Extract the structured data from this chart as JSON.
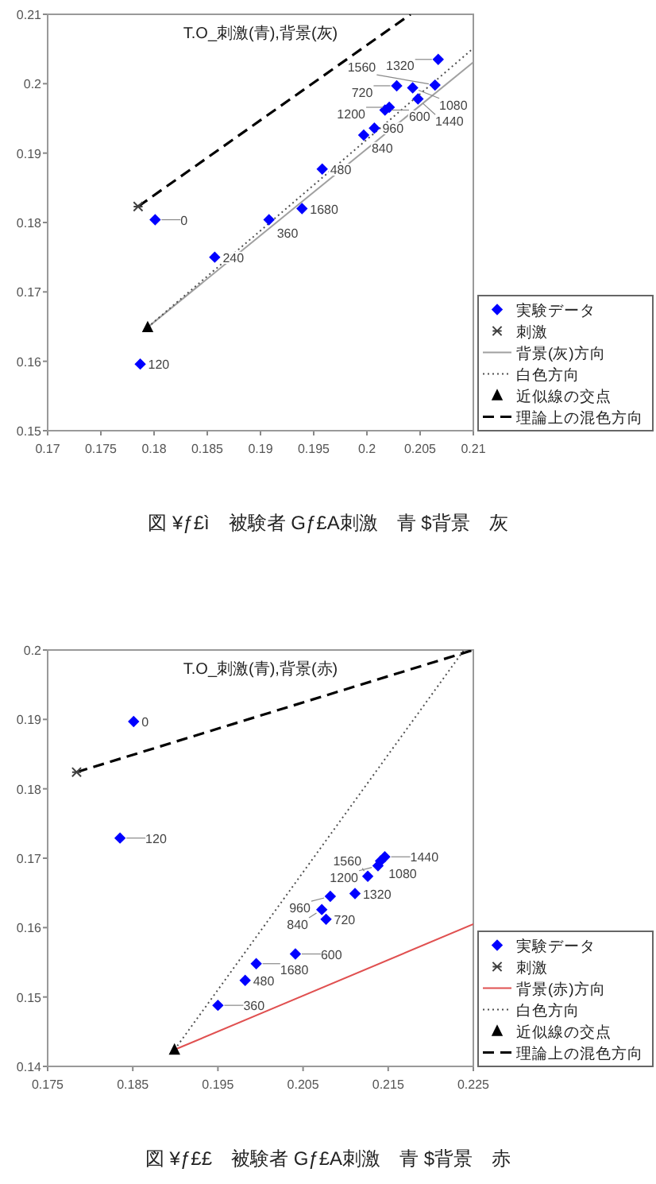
{
  "chart_data": [
    {
      "type": "scatter",
      "title": "T.O_刺激(青),背景(灰)",
      "xlim": [
        0.17,
        0.21
      ],
      "ylim": [
        0.15,
        0.21
      ],
      "xticks": [
        0.17,
        0.175,
        0.18,
        0.185,
        0.19,
        0.195,
        0.2,
        0.205,
        0.21
      ],
      "yticks": [
        0.15,
        0.16,
        0.17,
        0.18,
        0.19,
        0.2,
        0.21
      ],
      "legend": "bottom right",
      "series": [
        {
          "name": "実験データ",
          "type": "scatter",
          "marker": "diamond",
          "color": "#0000ff",
          "x": [
            0.1801,
            0.1787,
            0.1857,
            0.1908,
            0.1958,
            0.2017,
            0.2028,
            0.1997,
            0.2007,
            0.2043,
            0.2021,
            0.2067,
            0.2048,
            0.2064,
            0.1939
          ],
          "values": [
            0.1804,
            0.1596,
            0.175,
            0.1804,
            0.1877,
            0.1962,
            0.1997,
            0.1926,
            0.1936,
            0.1994,
            0.1966,
            0.2035,
            0.1978,
            0.1998,
            0.182
          ]
        },
        {
          "name": "刺激",
          "type": "scatter",
          "marker": "cross",
          "color": "#404040",
          "x": [
            0.1785
          ],
          "values": [
            0.1823
          ]
        },
        {
          "name": "背景(灰)方向",
          "type": "line",
          "line_style": "solid",
          "color": "#a0a0a0",
          "x": [
            0.1794,
            0.21
          ],
          "values": [
            0.1649,
            0.2031
          ]
        },
        {
          "name": "白色方向",
          "type": "line",
          "line_style": "dotted",
          "color": "#505050",
          "x": [
            0.1794,
            0.21
          ],
          "values": [
            0.1649,
            0.2051
          ]
        },
        {
          "name": "近似線の交点",
          "type": "scatter",
          "marker": "triangle",
          "color": "#000000",
          "x": [
            0.1794
          ],
          "values": [
            0.1649
          ]
        },
        {
          "name": "理論上の混色方向",
          "type": "line",
          "line_style": "dashed",
          "color": "#000000",
          "x": [
            0.1785,
            0.2041
          ],
          "values": [
            0.1823,
            0.21
          ]
        }
      ],
      "annotations": [
        {
          "text": "0",
          "x": 0.1801,
          "y": 0.1804
        },
        {
          "text": "120",
          "x": 0.1787,
          "y": 0.1596
        },
        {
          "text": "240",
          "x": 0.1857,
          "y": 0.175
        },
        {
          "text": "360",
          "x": 0.1908,
          "y": 0.1804
        },
        {
          "text": "480",
          "x": 0.1958,
          "y": 0.1877
        },
        {
          "text": "600",
          "x": 0.2017,
          "y": 0.1962
        },
        {
          "text": "720",
          "x": 0.2028,
          "y": 0.1997
        },
        {
          "text": "840",
          "x": 0.1997,
          "y": 0.1926
        },
        {
          "text": "960",
          "x": 0.2007,
          "y": 0.1936
        },
        {
          "text": "1080",
          "x": 0.2043,
          "y": 0.1994
        },
        {
          "text": "1200",
          "x": 0.2021,
          "y": 0.1966
        },
        {
          "text": "1320",
          "x": 0.2067,
          "y": 0.2035
        },
        {
          "text": "1440",
          "x": 0.2048,
          "y": 0.1978
        },
        {
          "text": "1560",
          "x": 0.2064,
          "y": 0.1998
        },
        {
          "text": "1680",
          "x": 0.1939,
          "y": 0.182
        },
        "図 ¥ƒ£ì　被験者 Gƒ£A刺激　青 $背景　灰"
      ]
    },
    {
      "type": "scatter",
      "title": "T.O_刺激(青),背景(赤)",
      "xlim": [
        0.175,
        0.225
      ],
      "ylim": [
        0.14,
        0.2
      ],
      "xticks": [
        0.175,
        0.185,
        0.195,
        0.205,
        0.215,
        0.225
      ],
      "yticks": [
        0.14,
        0.15,
        0.16,
        0.17,
        0.18,
        0.19,
        0.2
      ],
      "legend": "bottom right",
      "series": [
        {
          "name": "実験データ",
          "type": "scatter",
          "marker": "diamond",
          "color": "#0000ff",
          "x": [
            0.1851,
            0.1835,
            0.195,
            0.1982,
            0.2041,
            0.2077,
            0.2072,
            0.2082,
            0.2141,
            0.2138,
            0.2111,
            0.2146,
            0.2126,
            0.1995
          ],
          "values": [
            0.1897,
            0.1729,
            0.1488,
            0.1524,
            0.1562,
            0.1612,
            0.1626,
            0.1645,
            0.1696,
            0.1689,
            0.1649,
            0.1702,
            0.1674,
            0.1548
          ]
        },
        {
          "name": "刺激",
          "type": "scatter",
          "marker": "cross",
          "color": "#404040",
          "x": [
            0.1784
          ],
          "values": [
            0.1824
          ]
        },
        {
          "name": "背景(赤)方向",
          "type": "line",
          "line_style": "solid",
          "color": "#e05050",
          "x": [
            0.1899,
            0.225
          ],
          "values": [
            0.1424,
            0.1605
          ]
        },
        {
          "name": "白色方向",
          "type": "line",
          "line_style": "dotted",
          "color": "#505050",
          "x": [
            0.1899,
            0.2239
          ],
          "values": [
            0.1424,
            0.2
          ]
        },
        {
          "name": "近似線の交点",
          "type": "scatter",
          "marker": "triangle",
          "color": "#000000",
          "x": [
            0.1899
          ],
          "values": [
            0.1424
          ]
        },
        {
          "name": "理論上の混色方向",
          "type": "line",
          "line_style": "dashed",
          "color": "#000000",
          "x": [
            0.1784,
            0.225
          ],
          "values": [
            0.1824,
            0.2
          ]
        }
      ],
      "annotations": [
        {
          "text": "0",
          "x": 0.1851,
          "y": 0.1897
        },
        {
          "text": "120",
          "x": 0.1835,
          "y": 0.1729
        },
        {
          "text": "360",
          "x": 0.195,
          "y": 0.1488
        },
        {
          "text": "480",
          "x": 0.1982,
          "y": 0.1524
        },
        {
          "text": "600",
          "x": 0.2041,
          "y": 0.1562
        },
        {
          "text": "720",
          "x": 0.2077,
          "y": 0.1612
        },
        {
          "text": "840",
          "x": 0.2072,
          "y": 0.1626
        },
        {
          "text": "960",
          "x": 0.2082,
          "y": 0.1645
        },
        {
          "text": "1080",
          "x": 0.2141,
          "y": 0.1696
        },
        {
          "text": "1200",
          "x": 0.2138,
          "y": 0.1689
        },
        {
          "text": "1320",
          "x": 0.2111,
          "y": 0.1649
        },
        {
          "text": "1440",
          "x": 0.2146,
          "y": 0.1702
        },
        {
          "text": "1560",
          "x": 0.2126,
          "y": 0.1674
        },
        {
          "text": "1680",
          "x": 0.1995,
          "y": 0.1548
        },
        "図 ¥ƒ££　被験者 Gƒ£A刺激　青 $背景　赤"
      ]
    }
  ]
}
